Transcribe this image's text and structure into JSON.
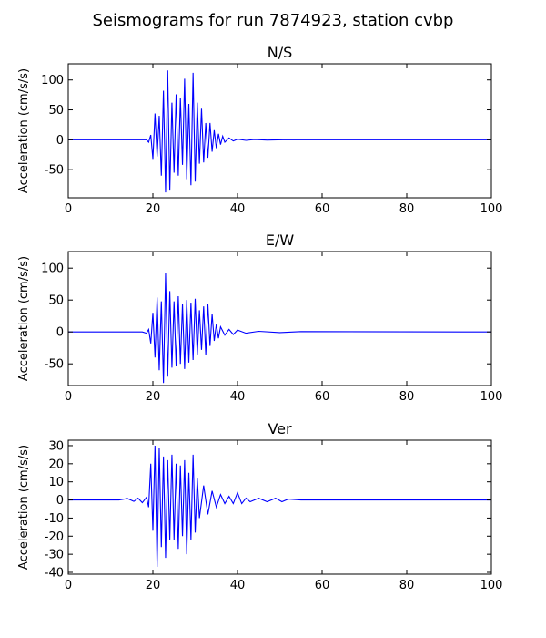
{
  "figure": {
    "title": "Seismograms for run 7874923, station cvbp"
  },
  "colors": {
    "trace": "#0000ff",
    "axes": "#000000",
    "background": "#ffffff"
  },
  "chart_data": [
    {
      "type": "line",
      "title": "N/S",
      "xlabel": "",
      "ylabel": "Acceleration (cm/s/s)",
      "xlim": [
        0,
        100
      ],
      "ylim": [
        -97,
        127
      ],
      "xticks": [
        0,
        20,
        40,
        60,
        80,
        100
      ],
      "yticks": [
        -50,
        0,
        50,
        100
      ],
      "grid": false,
      "series": [
        {
          "x": [
            0,
            18.5,
            19.0,
            19.5,
            20.0,
            20.5,
            21.0,
            21.5,
            22.0,
            22.5,
            23.0,
            23.5,
            24.0,
            24.5,
            25.0,
            25.5,
            26.0,
            26.5,
            27.0,
            27.5,
            28.0,
            28.5,
            29.0,
            29.5,
            30.0,
            30.5,
            31.0,
            31.5,
            32.0,
            32.5,
            33.0,
            33.5,
            34.0,
            34.5,
            35.0,
            35.5,
            36.0,
            36.5,
            37.0,
            38.0,
            39.0,
            40.0,
            42.0,
            44.0,
            47.0,
            52.0,
            60.0,
            100.0
          ],
          "y": [
            0,
            0,
            -4,
            8,
            -32,
            44,
            -28,
            40,
            -60,
            82,
            -88,
            116,
            -85,
            62,
            -55,
            76,
            -60,
            70,
            -42,
            102,
            -66,
            60,
            -76,
            112,
            -70,
            62,
            -40,
            52,
            -38,
            28,
            -30,
            28,
            -20,
            16,
            -14,
            10,
            -8,
            6,
            -4,
            3,
            -2,
            1,
            -1,
            0.5,
            -0.5,
            0.3,
            0,
            0
          ]
        }
      ]
    },
    {
      "type": "line",
      "title": "E/W",
      "xlabel": "",
      "ylabel": "Acceleration (cm/s/s)",
      "xlim": [
        0,
        100
      ],
      "ylim": [
        -84,
        126
      ],
      "xticks": [
        0,
        20,
        40,
        60,
        80,
        100
      ],
      "yticks": [
        -50,
        0,
        50,
        100
      ],
      "grid": false,
      "series": [
        {
          "x": [
            0,
            17.5,
            18.5,
            19.0,
            19.5,
            20.0,
            20.5,
            21.0,
            21.5,
            22.0,
            22.5,
            23.0,
            23.5,
            24.0,
            24.5,
            25.0,
            25.5,
            26.0,
            26.5,
            27.0,
            27.5,
            28.0,
            28.5,
            29.0,
            29.5,
            30.0,
            30.5,
            31.0,
            31.5,
            32.0,
            32.5,
            33.0,
            33.5,
            34.0,
            34.5,
            35.0,
            35.5,
            36.0,
            37.0,
            38.0,
            39.0,
            40.0,
            42.0,
            45.0,
            50.0,
            55.0,
            100.0
          ],
          "y": [
            0,
            0,
            -2,
            4,
            -18,
            30,
            -40,
            54,
            -60,
            48,
            -80,
            92,
            -70,
            64,
            -56,
            48,
            -54,
            56,
            -50,
            44,
            -58,
            50,
            -48,
            46,
            -44,
            52,
            -36,
            34,
            -28,
            40,
            -36,
            44,
            -22,
            28,
            -14,
            12,
            -10,
            8,
            -5,
            4,
            -4,
            3,
            -2,
            1,
            -1,
            0.5,
            0
          ]
        }
      ]
    },
    {
      "type": "line",
      "title": "Ver",
      "xlabel": "",
      "ylabel": "Acceleration (cm/s/s)",
      "xlim": [
        0,
        100
      ],
      "ylim": [
        -41,
        33
      ],
      "xticks": [
        0,
        20,
        40,
        60,
        80,
        100
      ],
      "yticks": [
        -40,
        -30,
        -20,
        -10,
        0,
        10,
        20,
        30
      ],
      "grid": false,
      "series": [
        {
          "x": [
            0,
            12.0,
            14.0,
            15.5,
            16.5,
            17.5,
            18.5,
            19.0,
            19.5,
            20.0,
            20.5,
            21.0,
            21.5,
            22.0,
            22.5,
            23.0,
            23.5,
            24.0,
            24.5,
            25.0,
            25.5,
            26.0,
            26.5,
            27.0,
            27.5,
            28.0,
            28.5,
            29.0,
            29.5,
            30.0,
            30.5,
            31.0,
            32.0,
            33.0,
            34.0,
            35.0,
            36.0,
            37.0,
            38.0,
            39.0,
            40.0,
            41.0,
            42.0,
            43.0,
            45.0,
            47.0,
            49.0,
            50.5,
            52.0,
            55.0,
            100.0
          ],
          "y": [
            0,
            0,
            0.8,
            -0.8,
            1,
            -1.5,
            1.5,
            -4,
            20,
            -17,
            30,
            -37,
            29,
            -26,
            24,
            -32,
            22,
            -22,
            25,
            -22,
            20,
            -27,
            19,
            -20,
            22,
            -30,
            15,
            -22,
            25,
            -18,
            12,
            -10,
            8,
            -8,
            5,
            -4,
            3,
            -2,
            2,
            -2,
            4,
            -2,
            1,
            -1,
            1,
            -1,
            1,
            -1,
            0.5,
            0,
            0
          ]
        }
      ]
    }
  ]
}
